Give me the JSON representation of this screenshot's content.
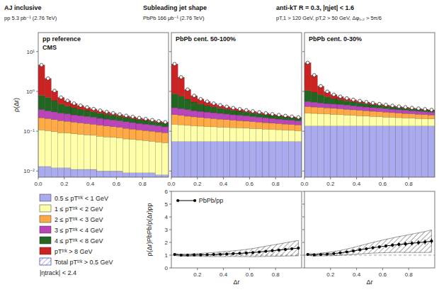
{
  "chart_data": [
    {
      "type": "histogram",
      "title": "pp reference",
      "subtitle": "CMS",
      "annotations": [
        "AJ inclusive",
        "pp 5.3 pb⁻¹ (2.76 TeV)",
        "|ηtrack| < 2.4"
      ],
      "ylabel": "ρ(Δr)",
      "bins": [
        0.0,
        0.05,
        0.1,
        0.15,
        0.2,
        0.25,
        0.3,
        0.35,
        0.4,
        0.45,
        0.5,
        0.55,
        0.6,
        0.65,
        0.7,
        0.75,
        0.8,
        0.85,
        0.9,
        0.95,
        1.0
      ],
      "series": [
        {
          "name": "0.5 ≤ pTᵗʳᵏ < 1 GeV",
          "color": "#aaaaee",
          "values": [
            0.013,
            0.013,
            0.012,
            0.012,
            0.012,
            0.011,
            0.011,
            0.011,
            0.011,
            0.01,
            0.01,
            0.01,
            0.01,
            0.009,
            0.009,
            0.009,
            0.009,
            0.009,
            0.008,
            0.008
          ]
        },
        {
          "name": "1 ≤ pTᵗʳᵏ < 2 GeV",
          "color": "#ffffaa",
          "values": [
            0.095,
            0.09,
            0.085,
            0.08,
            0.078,
            0.075,
            0.072,
            0.07,
            0.068,
            0.065,
            0.062,
            0.06,
            0.058,
            0.055,
            0.053,
            0.051,
            0.049,
            0.047,
            0.045,
            0.043
          ]
        },
        {
          "name": "2 ≤ pTᵗʳᵏ < 3 GeV",
          "color": "#ffaa44",
          "values": [
            0.11,
            0.105,
            0.098,
            0.092,
            0.087,
            0.082,
            0.078,
            0.074,
            0.07,
            0.066,
            0.063,
            0.06,
            0.057,
            0.054,
            0.051,
            0.048,
            0.046,
            0.044,
            0.042,
            0.04
          ]
        },
        {
          "name": "3 ≤ pTᵗʳᵏ < 4 GeV",
          "color": "#bb44bb",
          "values": [
            0.13,
            0.12,
            0.11,
            0.1,
            0.095,
            0.09,
            0.085,
            0.08,
            0.075,
            0.07,
            0.066,
            0.062,
            0.058,
            0.055,
            0.052,
            0.049,
            0.046,
            0.043,
            0.041,
            0.038
          ]
        },
        {
          "name": "4 ≤ pTᵗʳᵏ < 8 GeV",
          "color": "#226622",
          "values": [
            0.45,
            0.38,
            0.28,
            0.2,
            0.16,
            0.13,
            0.11,
            0.095,
            0.083,
            0.073,
            0.065,
            0.058,
            0.052,
            0.047,
            0.043,
            0.039,
            0.036,
            0.033,
            0.03,
            0.028
          ]
        },
        {
          "name": "pTᵗʳᵏ > 8 GeV",
          "color": "#cc2222",
          "values": [
            3.8,
            1.4,
            0.45,
            0.22,
            0.15,
            0.11,
            0.085,
            0.068,
            0.056,
            0.047,
            0.04,
            0.034,
            0.029,
            0.025,
            0.022,
            0.019,
            0.017,
            0.015,
            0.013,
            0.012
          ]
        },
        {
          "name": "Total pTᵗʳᵏ > 0.5 GeV",
          "type": "scatter",
          "marker": "circle",
          "color": "#3333aa",
          "values": [
            4.598,
            2.108,
            1.035,
            0.704,
            0.582,
            0.498,
            0.441,
            0.398,
            0.363,
            0.331,
            0.306,
            0.284,
            0.264,
            0.245,
            0.23,
            0.215,
            0.203,
            0.191,
            0.179,
            0.169
          ]
        }
      ],
      "stacked": true,
      "log": "y",
      "xlim": [
        0,
        1
      ],
      "xticks": [
        {
          "value": 0,
          "label": "0.0"
        },
        0.2,
        0.4,
        0.6,
        0.8
      ],
      "ylim": [
        0.007,
        30
      ],
      "yticks": [
        {
          "value": 0.01,
          "label": "10⁻²"
        },
        {
          "value": 0.1,
          "label": "10⁻¹"
        },
        {
          "value": 1,
          "label": "10⁰"
        },
        {
          "value": 10,
          "label": "10¹"
        }
      ],
      "legend": "bottom"
    },
    {
      "type": "histogram",
      "title": "PbPb cent. 50-100%",
      "annotations": [
        "Subleading jet shape",
        "PbPb 166 μb⁻¹ (2.76 TeV)"
      ],
      "bins": [
        0.0,
        0.05,
        0.1,
        0.15,
        0.2,
        0.25,
        0.3,
        0.35,
        0.4,
        0.45,
        0.5,
        0.55,
        0.6,
        0.65,
        0.7,
        0.75,
        0.8,
        0.85,
        0.9,
        0.95,
        1.0
      ],
      "series": [
        {
          "color": "#aaaaee",
          "values": [
            0.055,
            0.055,
            0.055,
            0.055,
            0.055,
            0.055,
            0.055,
            0.055,
            0.055,
            0.055,
            0.055,
            0.055,
            0.055,
            0.055,
            0.055,
            0.055,
            0.055,
            0.055,
            0.055,
            0.055
          ]
        },
        {
          "color": "#ffffaa",
          "values": [
            0.095,
            0.09,
            0.085,
            0.082,
            0.079,
            0.076,
            0.074,
            0.072,
            0.07,
            0.068,
            0.066,
            0.064,
            0.062,
            0.06,
            0.058,
            0.056,
            0.054,
            0.052,
            0.05,
            0.048
          ]
        },
        {
          "color": "#ffaa44",
          "values": [
            0.11,
            0.105,
            0.098,
            0.092,
            0.087,
            0.082,
            0.078,
            0.074,
            0.07,
            0.066,
            0.063,
            0.06,
            0.057,
            0.054,
            0.051,
            0.048,
            0.046,
            0.044,
            0.042,
            0.04
          ]
        },
        {
          "color": "#bb44bb",
          "values": [
            0.13,
            0.12,
            0.11,
            0.1,
            0.095,
            0.09,
            0.085,
            0.08,
            0.075,
            0.07,
            0.066,
            0.062,
            0.058,
            0.055,
            0.052,
            0.049,
            0.046,
            0.043,
            0.041,
            0.038
          ]
        },
        {
          "color": "#226622",
          "values": [
            0.48,
            0.4,
            0.29,
            0.21,
            0.165,
            0.135,
            0.115,
            0.098,
            0.085,
            0.075,
            0.067,
            0.06,
            0.054,
            0.049,
            0.044,
            0.04,
            0.037,
            0.034,
            0.031,
            0.029
          ]
        },
        {
          "color": "#cc2222",
          "values": [
            4.0,
            1.5,
            0.48,
            0.24,
            0.16,
            0.12,
            0.09,
            0.072,
            0.059,
            0.049,
            0.042,
            0.036,
            0.031,
            0.027,
            0.023,
            0.02,
            0.018,
            0.016,
            0.014,
            0.013
          ]
        },
        {
          "type": "scatter",
          "marker": "circle",
          "values": [
            4.87,
            2.27,
            1.118,
            0.779,
            0.641,
            0.558,
            0.497,
            0.451,
            0.414,
            0.383,
            0.359,
            0.337,
            0.317,
            0.3,
            0.283,
            0.268,
            0.256,
            0.244,
            0.233,
            0.223
          ]
        }
      ],
      "stacked": true,
      "log": "y",
      "xlim": [
        0,
        1
      ],
      "xticks": [
        {
          "value": 0,
          "label": "0.0"
        },
        0.2,
        0.4,
        0.6,
        0.8
      ],
      "ylim": [
        0.007,
        30
      ],
      "yticks": [
        0.01,
        0.1,
        1,
        10
      ],
      "tick_labels": "x"
    },
    {
      "type": "histogram",
      "title": "PbPb cent. 0-30%",
      "annotations": [
        "anti-kT R = 0.3, |ηjet| < 1.6",
        "pT,1 > 120 GeV, pT,2 > 50 GeV, Δφ₁,₂ > 5π/6"
      ],
      "bins": [
        0.0,
        0.05,
        0.1,
        0.15,
        0.2,
        0.25,
        0.3,
        0.35,
        0.4,
        0.45,
        0.5,
        0.55,
        0.6,
        0.65,
        0.7,
        0.75,
        0.8,
        0.85,
        0.9,
        0.95,
        1.0
      ],
      "series": [
        {
          "color": "#aaaaee",
          "values": [
            0.135,
            0.135,
            0.135,
            0.135,
            0.135,
            0.135,
            0.135,
            0.135,
            0.135,
            0.135,
            0.135,
            0.135,
            0.135,
            0.135,
            0.135,
            0.135,
            0.135,
            0.135,
            0.135,
            0.135
          ]
        },
        {
          "color": "#ffffaa",
          "values": [
            0.15,
            0.145,
            0.14,
            0.135,
            0.13,
            0.125,
            0.12,
            0.115,
            0.11,
            0.105,
            0.1,
            0.096,
            0.092,
            0.088,
            0.084,
            0.08,
            0.077,
            0.074,
            0.071,
            0.068
          ]
        },
        {
          "color": "#ffaa44",
          "values": [
            0.13,
            0.125,
            0.12,
            0.115,
            0.11,
            0.105,
            0.1,
            0.095,
            0.09,
            0.086,
            0.082,
            0.078,
            0.074,
            0.07,
            0.067,
            0.064,
            0.061,
            0.058,
            0.055,
            0.052
          ]
        },
        {
          "color": "#bb44bb",
          "values": [
            0.14,
            0.13,
            0.12,
            0.11,
            0.105,
            0.1,
            0.095,
            0.09,
            0.085,
            0.08,
            0.075,
            0.071,
            0.067,
            0.063,
            0.06,
            0.057,
            0.054,
            0.051,
            0.048,
            0.045
          ]
        },
        {
          "color": "#226622",
          "values": [
            0.5,
            0.42,
            0.32,
            0.23,
            0.18,
            0.15,
            0.125,
            0.107,
            0.093,
            0.082,
            0.073,
            0.065,
            0.059,
            0.053,
            0.048,
            0.044,
            0.04,
            0.037,
            0.034,
            0.031
          ]
        },
        {
          "color": "#cc2222",
          "values": [
            4.2,
            1.6,
            0.52,
            0.26,
            0.17,
            0.125,
            0.096,
            0.075,
            0.062,
            0.052,
            0.044,
            0.038,
            0.032,
            0.028,
            0.024,
            0.021,
            0.019,
            0.017,
            0.015,
            0.013
          ]
        },
        {
          "type": "scatter",
          "marker": "circle",
          "values": [
            5.255,
            2.555,
            1.355,
            0.985,
            0.83,
            0.74,
            0.671,
            0.617,
            0.575,
            0.54,
            0.509,
            0.483,
            0.459,
            0.437,
            0.418,
            0.401,
            0.386,
            0.372,
            0.358,
            0.344
          ]
        }
      ],
      "stacked": true,
      "log": "y",
      "xlim": [
        0,
        1
      ],
      "xticks": [
        {
          "value": 0,
          "label": "0.0"
        },
        0.2,
        0.4,
        0.6,
        0.8
      ],
      "ylim": [
        0.007,
        30
      ],
      "yticks": [
        0.01,
        0.1,
        1,
        10
      ],
      "tick_labels": "x"
    },
    {
      "type": "line",
      "xlabel": "Δr",
      "ylabel": "ρ(Δr)PbPb/ρ(Δr)pp",
      "x": [
        0.025,
        0.075,
        0.125,
        0.175,
        0.225,
        0.275,
        0.325,
        0.375,
        0.425,
        0.475,
        0.525,
        0.575,
        0.625,
        0.675,
        0.725,
        0.775,
        0.825,
        0.875,
        0.925,
        0.975
      ],
      "series": [
        {
          "name": "PbPb/pp",
          "color": "black",
          "marker": "circle",
          "values": [
            1.05,
            1.0,
            1.0,
            1.02,
            1.02,
            1.03,
            1.05,
            1.07,
            1.09,
            1.12,
            1.14,
            1.17,
            1.2,
            1.25,
            1.3,
            1.35,
            1.4,
            1.45,
            1.5,
            1.55
          ],
          "errors": [
            0.04,
            0.04,
            0.04,
            0.04,
            0.04,
            0.04,
            0.04,
            0.05,
            0.05,
            0.05,
            0.06,
            0.06,
            0.07,
            0.07,
            0.08,
            0.09,
            0.1,
            0.11,
            0.12,
            0.13
          ],
          "band": [
            0.08,
            0.08,
            0.09,
            0.1,
            0.12,
            0.14,
            0.16,
            0.18,
            0.2,
            0.22,
            0.25,
            0.28,
            0.32,
            0.36,
            0.4,
            0.44,
            0.48,
            0.52,
            0.56,
            0.6
          ]
        }
      ],
      "reference": 1,
      "xlim": [
        0,
        1
      ],
      "xticks": [
        0.2,
        0.4,
        0.6,
        0.8
      ],
      "ylim": [
        0,
        6
      ],
      "yticks": [
        0,
        1,
        2,
        3,
        4,
        5,
        6
      ],
      "legend": "upper left"
    },
    {
      "type": "line",
      "xlabel": "Δr",
      "x": [
        0.025,
        0.075,
        0.125,
        0.175,
        0.225,
        0.275,
        0.325,
        0.375,
        0.425,
        0.475,
        0.525,
        0.575,
        0.625,
        0.675,
        0.725,
        0.775,
        0.825,
        0.875,
        0.925,
        0.975
      ],
      "series": [
        {
          "color": "black",
          "marker": "circle",
          "values": [
            1.05,
            1.02,
            1.05,
            1.08,
            1.12,
            1.18,
            1.25,
            1.33,
            1.42,
            1.5,
            1.58,
            1.65,
            1.72,
            1.78,
            1.84,
            1.88,
            1.93,
            1.98,
            2.03,
            2.1
          ],
          "errors": [
            0.04,
            0.04,
            0.05,
            0.05,
            0.06,
            0.07,
            0.08,
            0.09,
            0.1,
            0.11,
            0.12,
            0.13,
            0.14,
            0.15,
            0.16,
            0.17,
            0.18,
            0.19,
            0.2,
            0.22
          ],
          "band": [
            0.08,
            0.09,
            0.11,
            0.13,
            0.16,
            0.19,
            0.23,
            0.27,
            0.32,
            0.37,
            0.42,
            0.47,
            0.52,
            0.57,
            0.62,
            0.67,
            0.72,
            0.77,
            0.82,
            0.88
          ]
        }
      ],
      "reference": 1,
      "xlim": [
        0,
        1
      ],
      "xticks": [
        0.2,
        0.4,
        0.6,
        0.8
      ],
      "ylim": [
        0,
        6
      ],
      "yticks": [
        0,
        1,
        2,
        3,
        4,
        5,
        6
      ],
      "tick_labels": "x"
    }
  ]
}
